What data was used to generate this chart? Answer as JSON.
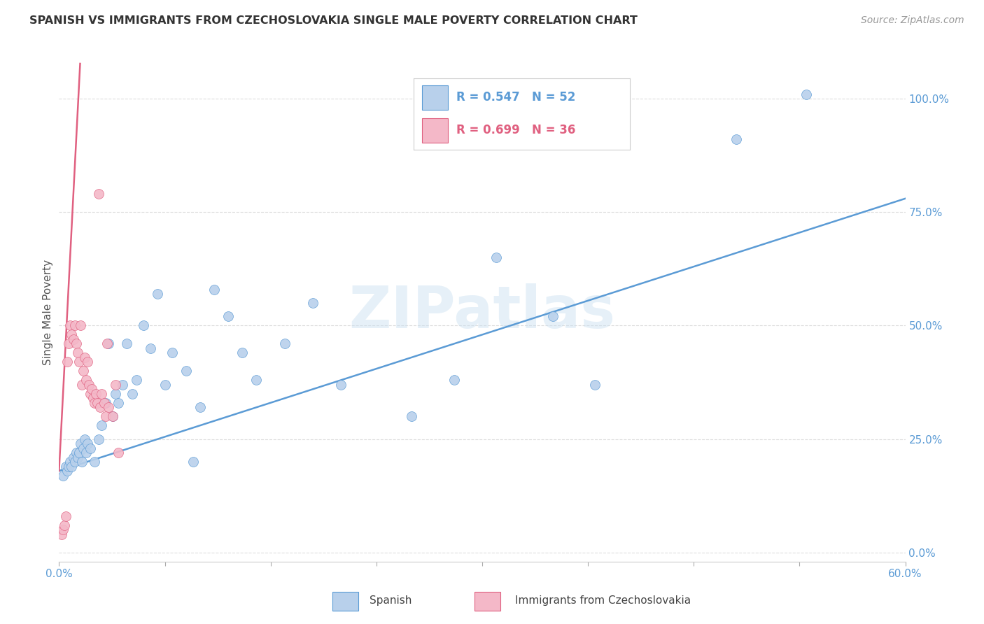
{
  "title": "SPANISH VS IMMIGRANTS FROM CZECHOSLOVAKIA SINGLE MALE POVERTY CORRELATION CHART",
  "source": "Source: ZipAtlas.com",
  "ylabel": "Single Male Poverty",
  "ytick_labels": [
    "0.0%",
    "25.0%",
    "50.0%",
    "75.0%",
    "100.0%"
  ],
  "ytick_values": [
    0.0,
    0.25,
    0.5,
    0.75,
    1.0
  ],
  "xlim": [
    0.0,
    0.6
  ],
  "ylim": [
    -0.02,
    1.08
  ],
  "watermark": "ZIPatlas",
  "blue_color": "#b8d0eb",
  "blue_line_color": "#5b9bd5",
  "pink_color": "#f4b8c8",
  "pink_line_color": "#e06080",
  "blue_slope": 1.0,
  "blue_intercept": 0.18,
  "pink_slope": 60.0,
  "pink_intercept": 0.18,
  "background_color": "#ffffff",
  "grid_color": "#dddddd",
  "spanish_x": [
    0.003,
    0.005,
    0.006,
    0.007,
    0.008,
    0.009,
    0.01,
    0.011,
    0.012,
    0.013,
    0.014,
    0.015,
    0.016,
    0.017,
    0.018,
    0.019,
    0.02,
    0.022,
    0.025,
    0.028,
    0.03,
    0.033,
    0.035,
    0.038,
    0.04,
    0.042,
    0.045,
    0.048,
    0.052,
    0.055,
    0.06,
    0.065,
    0.07,
    0.075,
    0.08,
    0.09,
    0.095,
    0.1,
    0.11,
    0.12,
    0.13,
    0.14,
    0.16,
    0.18,
    0.2,
    0.25,
    0.28,
    0.31,
    0.35,
    0.38,
    0.48,
    0.53
  ],
  "spanish_y": [
    0.17,
    0.19,
    0.18,
    0.19,
    0.2,
    0.19,
    0.21,
    0.2,
    0.22,
    0.21,
    0.22,
    0.24,
    0.2,
    0.23,
    0.25,
    0.22,
    0.24,
    0.23,
    0.2,
    0.25,
    0.28,
    0.33,
    0.46,
    0.3,
    0.35,
    0.33,
    0.37,
    0.46,
    0.35,
    0.38,
    0.5,
    0.45,
    0.57,
    0.37,
    0.44,
    0.4,
    0.2,
    0.32,
    0.58,
    0.52,
    0.44,
    0.38,
    0.46,
    0.55,
    0.37,
    0.3,
    0.38,
    0.65,
    0.52,
    0.37,
    0.91,
    1.01
  ],
  "czecho_x": [
    0.002,
    0.003,
    0.004,
    0.005,
    0.006,
    0.007,
    0.008,
    0.009,
    0.01,
    0.011,
    0.012,
    0.013,
    0.014,
    0.015,
    0.016,
    0.017,
    0.018,
    0.019,
    0.02,
    0.021,
    0.022,
    0.023,
    0.024,
    0.025,
    0.026,
    0.027,
    0.028,
    0.029,
    0.03,
    0.032,
    0.033,
    0.034,
    0.035,
    0.038,
    0.04,
    0.042
  ],
  "czecho_y": [
    0.04,
    0.05,
    0.06,
    0.08,
    0.42,
    0.46,
    0.5,
    0.48,
    0.47,
    0.5,
    0.46,
    0.44,
    0.42,
    0.5,
    0.37,
    0.4,
    0.43,
    0.38,
    0.42,
    0.37,
    0.35,
    0.36,
    0.34,
    0.33,
    0.35,
    0.33,
    0.79,
    0.32,
    0.35,
    0.33,
    0.3,
    0.46,
    0.32,
    0.3,
    0.37,
    0.22
  ]
}
